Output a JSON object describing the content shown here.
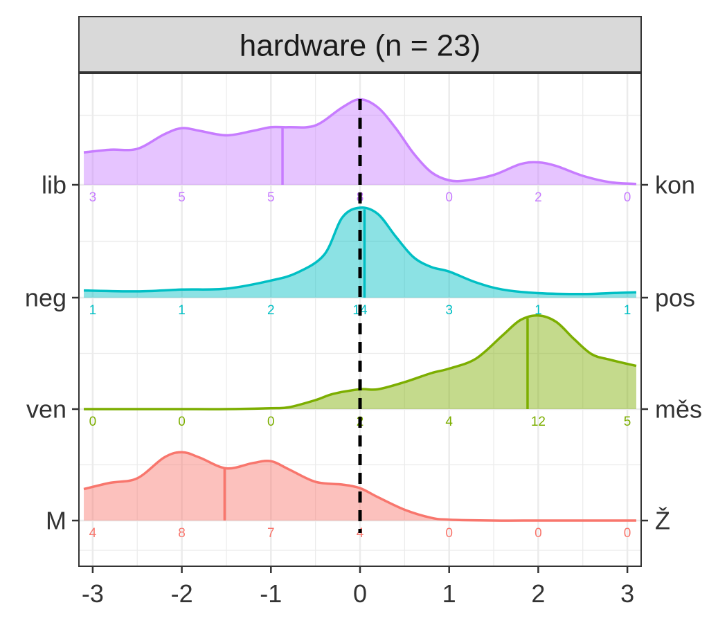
{
  "chart_data": {
    "type": "ridgeline-density",
    "facet_title": "hardware (n = 23)",
    "x_ticks": [
      -3,
      -2,
      -1,
      0,
      1,
      2,
      3
    ],
    "x_tick_labels": [
      "-3",
      "-2",
      "-1",
      "0",
      "1",
      "2",
      "3"
    ],
    "xlim": [
      -3.1,
      3.1
    ],
    "reference_line_x": 0,
    "grid": true,
    "scales": [
      {
        "left_label": "lib",
        "right_label": "kon",
        "color": "#C77CFF",
        "counts": [
          3,
          5,
          5,
          8,
          0,
          2,
          0
        ],
        "mean": -0.87,
        "density_x": [
          -3.1,
          -2.8,
          -2.5,
          -2.2,
          -2.0,
          -1.8,
          -1.5,
          -1.2,
          -1.0,
          -0.8,
          -0.5,
          -0.2,
          0.0,
          0.2,
          0.4,
          0.6,
          0.8,
          1.0,
          1.2,
          1.5,
          1.8,
          2.0,
          2.2,
          2.5,
          2.8,
          3.1
        ],
        "density_y": [
          0.36,
          0.39,
          0.4,
          0.56,
          0.63,
          0.6,
          0.55,
          0.6,
          0.64,
          0.64,
          0.66,
          0.86,
          0.95,
          0.86,
          0.63,
          0.35,
          0.14,
          0.05,
          0.05,
          0.11,
          0.23,
          0.25,
          0.21,
          0.1,
          0.03,
          0.01
        ]
      },
      {
        "left_label": "neg",
        "right_label": "pos",
        "color": "#00BFC4",
        "counts": [
          1,
          1,
          2,
          14,
          3,
          1,
          1
        ],
        "mean": 0.05,
        "density_x": [
          -3.1,
          -2.5,
          -2.0,
          -1.5,
          -1.0,
          -0.7,
          -0.4,
          -0.2,
          0.0,
          0.2,
          0.4,
          0.6,
          0.8,
          1.0,
          1.3,
          1.6,
          2.0,
          2.5,
          2.8,
          3.1
        ],
        "density_y": [
          0.08,
          0.07,
          0.09,
          0.1,
          0.19,
          0.28,
          0.48,
          0.89,
          1.0,
          0.93,
          0.68,
          0.45,
          0.34,
          0.29,
          0.17,
          0.09,
          0.05,
          0.04,
          0.05,
          0.06
        ]
      },
      {
        "left_label": "ven",
        "right_label": "měs",
        "color": "#7CAE00",
        "counts": [
          0,
          0,
          0,
          2,
          4,
          12,
          5
        ],
        "mean": 1.88,
        "density_x": [
          -3.1,
          -2.5,
          -2.0,
          -1.5,
          -1.0,
          -0.8,
          -0.5,
          -0.3,
          0.0,
          0.2,
          0.5,
          0.8,
          1.0,
          1.3,
          1.6,
          1.8,
          2.0,
          2.2,
          2.4,
          2.6,
          2.8,
          3.1
        ],
        "density_y": [
          0.0,
          0.0,
          0.0,
          0.0,
          0.01,
          0.02,
          0.1,
          0.17,
          0.22,
          0.22,
          0.3,
          0.4,
          0.45,
          0.56,
          0.82,
          0.99,
          1.04,
          0.97,
          0.78,
          0.61,
          0.55,
          0.48
        ]
      },
      {
        "left_label": "M",
        "right_label": "Ž",
        "color": "#F8766D",
        "counts": [
          4,
          8,
          7,
          4,
          0,
          0,
          0
        ],
        "mean": -1.52,
        "density_x": [
          -3.1,
          -2.8,
          -2.5,
          -2.2,
          -2.0,
          -1.8,
          -1.5,
          -1.2,
          -1.0,
          -0.8,
          -0.5,
          -0.2,
          0.0,
          0.2,
          0.5,
          0.8,
          1.0,
          1.5,
          2.0,
          2.5,
          3.1
        ],
        "density_y": [
          0.35,
          0.42,
          0.47,
          0.7,
          0.76,
          0.7,
          0.58,
          0.64,
          0.66,
          0.57,
          0.43,
          0.4,
          0.36,
          0.26,
          0.12,
          0.03,
          0.01,
          0.0,
          0.0,
          0.0,
          0.0
        ]
      }
    ]
  }
}
